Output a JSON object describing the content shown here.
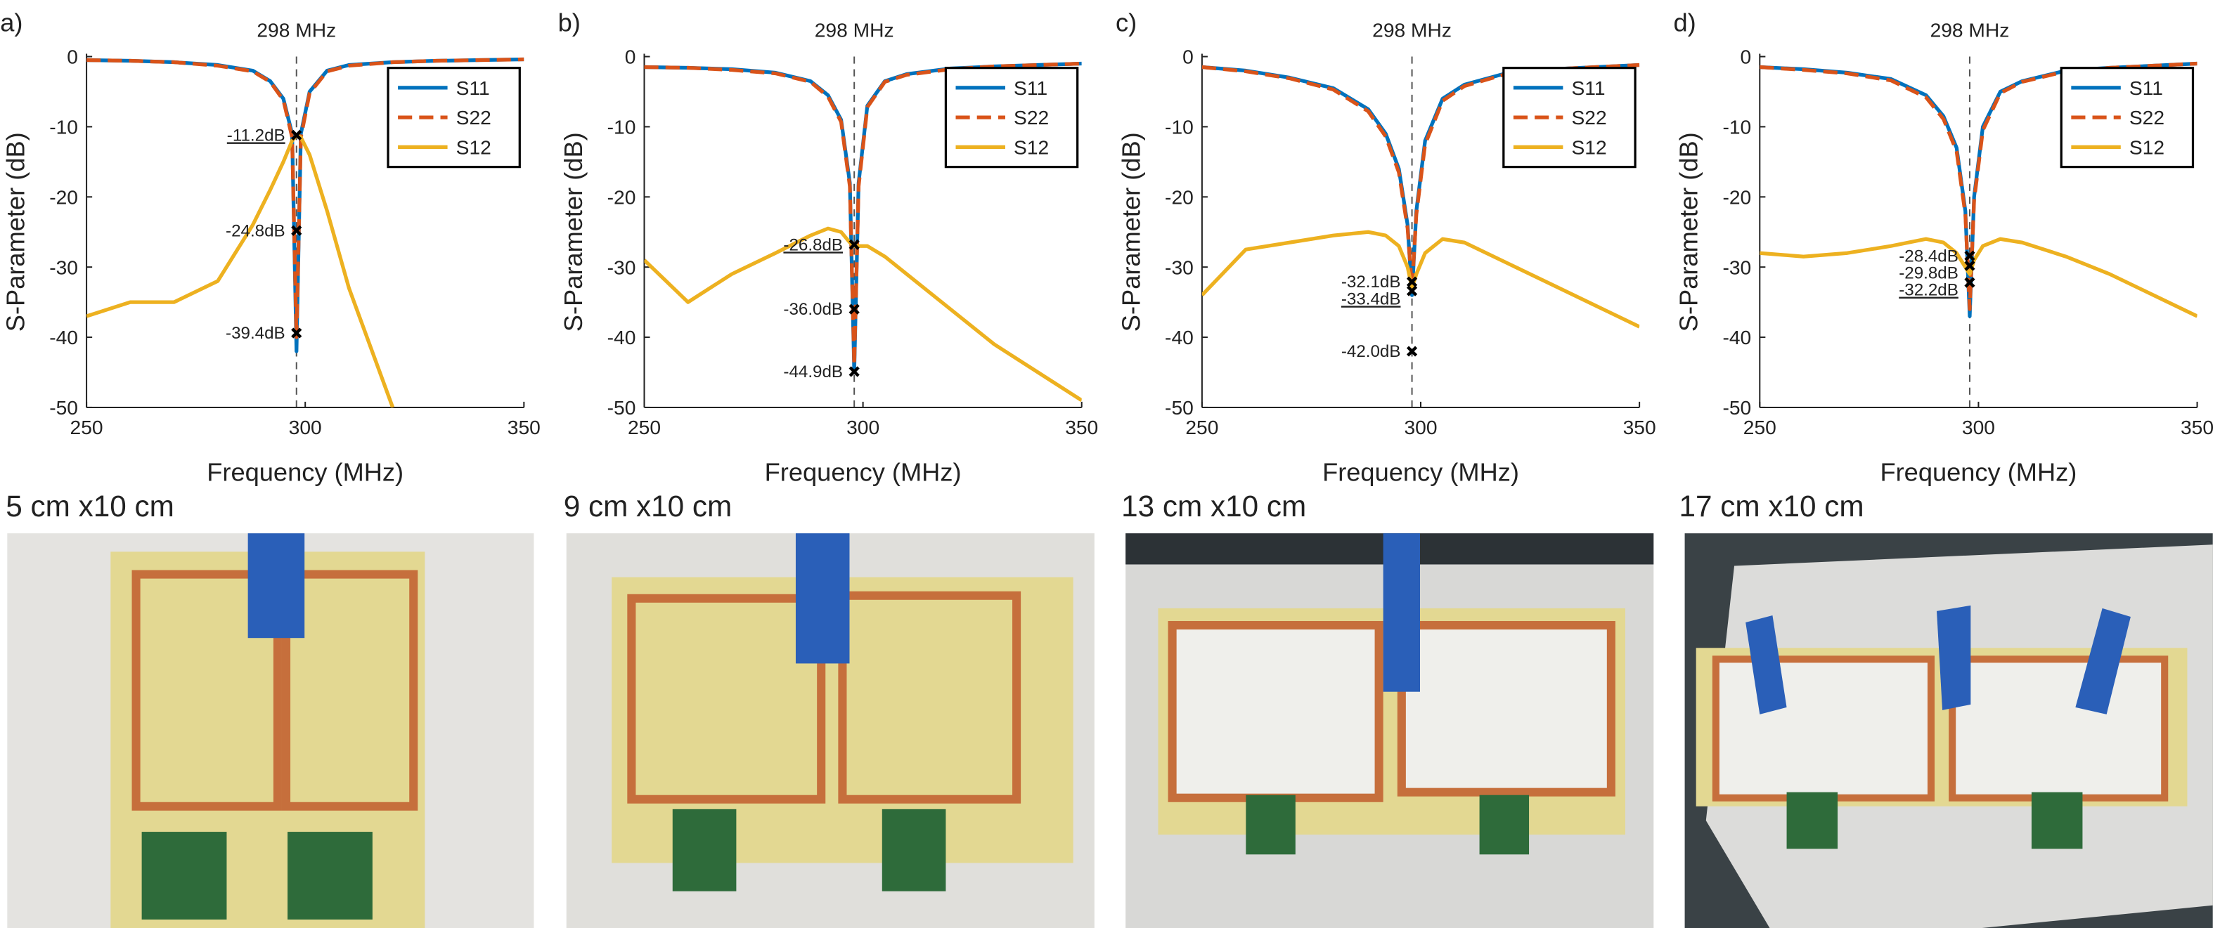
{
  "chart_data": [
    {
      "type": "line",
      "panel_label": "a)",
      "annotation": "298 MHz",
      "vline_x": 298,
      "xlabel": "Frequency (MHz)",
      "ylabel": "S-Parameter (dB)",
      "xlim": [
        250,
        350
      ],
      "xticks": [
        250,
        300,
        350
      ],
      "ylim": [
        -50,
        0
      ],
      "yticks": [
        0,
        -10,
        -20,
        -30,
        -40,
        -50
      ],
      "legend": "upper right",
      "x": [
        250,
        260,
        270,
        280,
        288,
        292,
        295,
        297,
        298,
        299,
        301,
        305,
        310,
        320,
        330,
        340,
        350
      ],
      "series": [
        {
          "name": "S11",
          "color": "#0072bd",
          "dash": false,
          "values": [
            -0.5,
            -0.6,
            -0.8,
            -1.2,
            -2,
            -3.5,
            -6,
            -11,
            -42,
            -11,
            -5,
            -2,
            -1.2,
            -0.8,
            -0.6,
            -0.5,
            -0.4
          ]
        },
        {
          "name": "S22",
          "color": "#d95319",
          "dash": true,
          "values": [
            -0.5,
            -0.6,
            -0.8,
            -1.3,
            -2.1,
            -3.6,
            -6.2,
            -11.5,
            -40,
            -11.5,
            -5.2,
            -2.1,
            -1.3,
            -0.8,
            -0.6,
            -0.5,
            -0.4
          ]
        },
        {
          "name": "S12",
          "color": "#edb120",
          "dash": false,
          "values": [
            -37,
            -35,
            -35,
            -32,
            -24,
            -19,
            -15,
            -12,
            -11.2,
            -11.5,
            -14,
            -22,
            -33,
            -50,
            null,
            null,
            null
          ]
        }
      ],
      "markers": [
        {
          "x": 298,
          "y": -11.2,
          "label": "-11.2dB",
          "underlined": true
        },
        {
          "x": 298,
          "y": -24.8,
          "label": "-24.8dB",
          "underlined": false
        },
        {
          "x": 298,
          "y": -39.4,
          "label": "-39.4dB",
          "underlined": false
        }
      ]
    },
    {
      "type": "line",
      "panel_label": "b)",
      "annotation": "298 MHz",
      "vline_x": 298,
      "xlabel": "Frequency (MHz)",
      "ylabel": "S-Parameter (dB)",
      "xlim": [
        250,
        350
      ],
      "xticks": [
        250,
        300,
        350
      ],
      "ylim": [
        -50,
        0
      ],
      "yticks": [
        0,
        -10,
        -20,
        -30,
        -40,
        -50
      ],
      "legend": "upper right",
      "x": [
        250,
        260,
        270,
        280,
        288,
        292,
        295,
        297,
        298,
        299,
        301,
        305,
        310,
        320,
        330,
        340,
        350
      ],
      "series": [
        {
          "name": "S11",
          "color": "#0072bd",
          "dash": false,
          "values": [
            -1.5,
            -1.6,
            -1.8,
            -2.3,
            -3.5,
            -5.5,
            -9,
            -18,
            -45,
            -18,
            -7,
            -3.5,
            -2.5,
            -1.7,
            -1.4,
            -1.2,
            -1
          ]
        },
        {
          "name": "S22",
          "color": "#d95319",
          "dash": true,
          "values": [
            -1.5,
            -1.6,
            -1.9,
            -2.4,
            -3.6,
            -5.7,
            -9.3,
            -18.5,
            -44,
            -18.5,
            -7.2,
            -3.6,
            -2.6,
            -1.8,
            -1.4,
            -1.2,
            -1
          ]
        },
        {
          "name": "S12",
          "color": "#edb120",
          "dash": false,
          "values": [
            -29,
            -35,
            -31,
            -28,
            -25.5,
            -24.5,
            -25,
            -26.5,
            -27,
            -27,
            -27,
            -28.5,
            -31,
            -36,
            -41,
            -45,
            -49
          ]
        }
      ],
      "markers": [
        {
          "x": 298,
          "y": -26.8,
          "label": "-26.8dB",
          "underlined": true
        },
        {
          "x": 298,
          "y": -36.0,
          "label": "-36.0dB",
          "underlined": false
        },
        {
          "x": 298,
          "y": -44.9,
          "label": "-44.9dB",
          "underlined": false
        }
      ]
    },
    {
      "type": "line",
      "panel_label": "c)",
      "annotation": "298 MHz",
      "vline_x": 298,
      "xlabel": "Frequency (MHz)",
      "ylabel": "S-Parameter (dB)",
      "xlim": [
        250,
        350
      ],
      "xticks": [
        250,
        300,
        350
      ],
      "ylim": [
        -50,
        0
      ],
      "yticks": [
        0,
        -10,
        -20,
        -30,
        -40,
        -50
      ],
      "legend": "upper right",
      "x": [
        250,
        260,
        270,
        280,
        288,
        292,
        295,
        297,
        298,
        299,
        301,
        305,
        310,
        320,
        330,
        340,
        350
      ],
      "series": [
        {
          "name": "S11",
          "color": "#0072bd",
          "dash": false,
          "values": [
            -1.5,
            -2,
            -3,
            -4.5,
            -7.5,
            -11,
            -16,
            -24,
            -34,
            -22,
            -12,
            -6,
            -4,
            -2.3,
            -1.8,
            -1.5,
            -1.2
          ]
        },
        {
          "name": "S22",
          "color": "#d95319",
          "dash": true,
          "values": [
            -1.5,
            -2.1,
            -3.1,
            -4.7,
            -7.8,
            -11.4,
            -16.5,
            -24.5,
            -33,
            -22.5,
            -12.5,
            -6.3,
            -4.2,
            -2.4,
            -1.8,
            -1.5,
            -1.2
          ]
        },
        {
          "name": "S12",
          "color": "#edb120",
          "dash": false,
          "values": [
            -34,
            -27.5,
            -26.5,
            -25.5,
            -25,
            -25.5,
            -27,
            -30,
            -33,
            -31,
            -28,
            -26,
            -26.5,
            -29.5,
            -32.5,
            -35.5,
            -38.5
          ]
        }
      ],
      "markers": [
        {
          "x": 298,
          "y": -32.1,
          "label": "-32.1dB",
          "underlined": false
        },
        {
          "x": 298,
          "y": -33.4,
          "label": "-33.4dB",
          "underlined": true
        },
        {
          "x": 298,
          "y": -42.0,
          "label": "-42.0dB",
          "underlined": false
        }
      ]
    },
    {
      "type": "line",
      "panel_label": "d)",
      "annotation": "298 MHz",
      "vline_x": 298,
      "xlabel": "Frequency (MHz)",
      "ylabel": "S-Parameter (dB)",
      "xlim": [
        250,
        350
      ],
      "xticks": [
        250,
        300,
        350
      ],
      "ylim": [
        -50,
        0
      ],
      "yticks": [
        0,
        -10,
        -20,
        -30,
        -40,
        -50
      ],
      "legend": "upper right",
      "x": [
        250,
        260,
        270,
        280,
        288,
        292,
        295,
        297,
        298,
        299,
        301,
        305,
        310,
        320,
        330,
        340,
        350
      ],
      "series": [
        {
          "name": "S11",
          "color": "#0072bd",
          "dash": false,
          "values": [
            -1.5,
            -1.8,
            -2.3,
            -3.2,
            -5.5,
            -8.5,
            -13,
            -22,
            -37,
            -20,
            -10,
            -5,
            -3.5,
            -2,
            -1.6,
            -1.3,
            -1
          ]
        },
        {
          "name": "S22",
          "color": "#d95319",
          "dash": true,
          "values": [
            -1.5,
            -1.9,
            -2.4,
            -3.4,
            -5.8,
            -8.9,
            -13.5,
            -22.5,
            -36,
            -20.5,
            -10.5,
            -5.2,
            -3.6,
            -2.1,
            -1.6,
            -1.3,
            -1
          ]
        },
        {
          "name": "S12",
          "color": "#edb120",
          "dash": false,
          "values": [
            -28,
            -28.5,
            -28,
            -27,
            -26,
            -26.5,
            -28,
            -30,
            -31,
            -29,
            -27,
            -26,
            -26.5,
            -28.5,
            -31,
            -34,
            -37
          ]
        }
      ],
      "markers": [
        {
          "x": 298,
          "y": -28.4,
          "label": "-28.4dB",
          "underlined": false
        },
        {
          "x": 298,
          "y": -29.8,
          "label": "-29.8dB",
          "underlined": false
        },
        {
          "x": 298,
          "y": -32.2,
          "label": "-32.2dB",
          "underlined": true
        }
      ]
    }
  ],
  "photos": [
    {
      "caption": "5 cm x10 cm"
    },
    {
      "caption": "9 cm x10 cm"
    },
    {
      "caption": "13 cm x10 cm"
    },
    {
      "caption": "17 cm x10 cm"
    }
  ]
}
